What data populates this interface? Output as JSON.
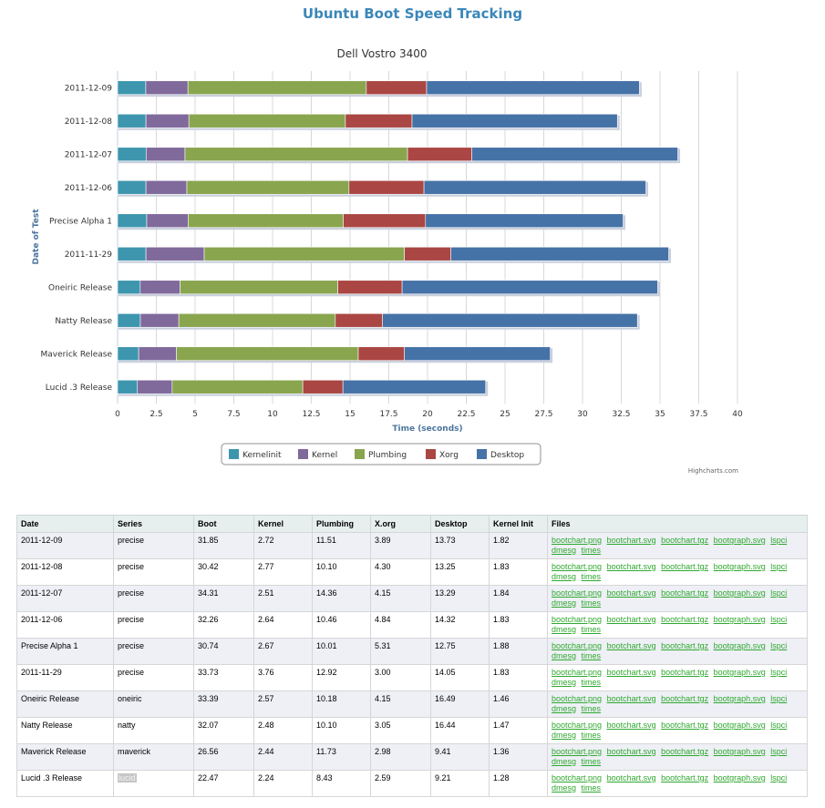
{
  "page": {
    "title": "Ubuntu Boot Speed Tracking"
  },
  "chart_data": {
    "type": "bar",
    "orientation": "horizontal",
    "stacked": true,
    "title": "Dell Vostro 3400",
    "xlabel": "Time (seconds)",
    "ylabel": "Date of Test",
    "xlim": [
      0,
      40
    ],
    "xticks": [
      0,
      2.5,
      5,
      7.5,
      10,
      12.5,
      15,
      17.5,
      20,
      22.5,
      25,
      27.5,
      30,
      32.5,
      35,
      37.5,
      40
    ],
    "grid": true,
    "legend_position": "bottom-center",
    "credits": "Highcharts.com",
    "categories": [
      "2011-12-09",
      "2011-12-08",
      "2011-12-07",
      "2011-12-06",
      "Precise Alpha 1",
      "2011-11-29",
      "Oneiric Release",
      "Natty Release",
      "Maverick Release",
      "Lucid .3 Release"
    ],
    "series": [
      {
        "name": "Kernelinit",
        "color": "#3d96ae",
        "values": [
          1.82,
          1.83,
          1.84,
          1.83,
          1.88,
          1.83,
          1.46,
          1.47,
          1.36,
          1.28
        ]
      },
      {
        "name": "Kernel",
        "color": "#80699b",
        "values": [
          2.72,
          2.77,
          2.51,
          2.64,
          2.67,
          3.76,
          2.57,
          2.48,
          2.44,
          2.24
        ]
      },
      {
        "name": "Plumbing",
        "color": "#89a54e",
        "values": [
          11.51,
          10.1,
          14.36,
          10.46,
          10.01,
          12.92,
          10.18,
          10.1,
          11.73,
          8.43
        ]
      },
      {
        "name": "Xorg",
        "color": "#aa4643",
        "values": [
          3.89,
          4.3,
          4.15,
          4.84,
          5.31,
          3.0,
          4.15,
          3.05,
          2.98,
          2.59
        ]
      },
      {
        "name": "Desktop",
        "color": "#4572a7",
        "values": [
          13.73,
          13.25,
          13.29,
          14.32,
          12.75,
          14.05,
          16.49,
          16.44,
          9.41,
          9.21
        ]
      }
    ]
  },
  "table": {
    "headers": [
      "Date",
      "Series",
      "Boot",
      "Kernel",
      "Plumbing",
      "X.org",
      "Desktop",
      "Kernel Init",
      "Files"
    ],
    "file_links": [
      "bootchart.png",
      "bootchart.svg",
      "bootchart.tgz",
      "bootgraph.svg",
      "lspci",
      "dmesg",
      "times"
    ],
    "rows": [
      [
        "2011-12-09",
        "precise",
        "31.85",
        "2.72",
        "11.51",
        "3.89",
        "13.73",
        "1.82"
      ],
      [
        "2011-12-08",
        "precise",
        "30.42",
        "2.77",
        "10.10",
        "4.30",
        "13.25",
        "1.83"
      ],
      [
        "2011-12-07",
        "precise",
        "34.31",
        "2.51",
        "14.36",
        "4.15",
        "13.29",
        "1.84"
      ],
      [
        "2011-12-06",
        "precise",
        "32.26",
        "2.64",
        "10.46",
        "4.84",
        "14.32",
        "1.83"
      ],
      [
        "Precise Alpha 1",
        "precise",
        "30.74",
        "2.67",
        "10.01",
        "5.31",
        "12.75",
        "1.88"
      ],
      [
        "2011-11-29",
        "precise",
        "33.73",
        "3.76",
        "12.92",
        "3.00",
        "14.05",
        "1.83"
      ],
      [
        "Oneiric Release",
        "oneiric",
        "33.39",
        "2.57",
        "10.18",
        "4.15",
        "16.49",
        "1.46"
      ],
      [
        "Natty Release",
        "natty",
        "32.07",
        "2.48",
        "10.10",
        "3.05",
        "16.44",
        "1.47"
      ],
      [
        "Maverick Release",
        "maverick",
        "26.56",
        "2.44",
        "11.73",
        "2.98",
        "9.41",
        "1.36"
      ],
      [
        "Lucid .3 Release",
        "lucid",
        "22.47",
        "2.24",
        "8.43",
        "2.59",
        "9.21",
        "1.28"
      ]
    ]
  }
}
